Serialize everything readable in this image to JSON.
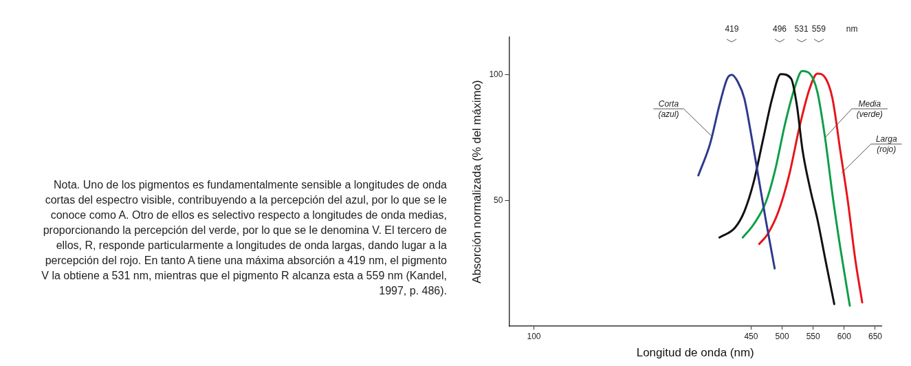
{
  "chart_data": {
    "type": "line",
    "xlabel": "Longitud de onda (nm)",
    "ylabel": "Absorción normalizada (% del máximo)",
    "x2label": "nm",
    "xlim": [
      60,
      660
    ],
    "xticks": [
      100,
      450,
      500,
      550,
      600,
      650
    ],
    "x2lim": [
      60,
      660
    ],
    "x2ticks": [
      419,
      496,
      531,
      559
    ],
    "ylim": [
      0,
      115
    ],
    "yticks": [
      50,
      100
    ],
    "grid": false,
    "legend": false,
    "marker": "none",
    "line_style": "solid",
    "series": [
      {
        "color": "#2e3a8c",
        "x": [
          365,
          384,
          399,
          411.5,
          419,
          429,
          439,
          449,
          461.5,
          474,
          488
        ],
        "values": [
          60,
          72.7,
          88,
          98.5,
          100,
          97,
          90.7,
          77.8,
          59.8,
          41.8,
          23
        ]
      },
      {
        "color": "#111111",
        "x": [
          399,
          424,
          439,
          454,
          469,
          484,
          497.8,
          514.5,
          523.7,
          532.9,
          545.2,
          557.5,
          569.8,
          584
        ],
        "values": [
          35.3,
          39.2,
          45.6,
          57.2,
          74,
          90.7,
          100.3,
          98.5,
          88,
          70,
          54.6,
          41.8,
          26.3,
          8.8
        ]
      },
      {
        "color": "#0e9e48",
        "x": [
          436.5,
          454,
          474,
          489,
          504.6,
          519.9,
          532.2,
          544.4,
          556.7,
          569,
          581.3,
          593.6,
          609
        ],
        "values": [
          35.3,
          40.5,
          49.5,
          62.4,
          80.4,
          94.6,
          101.5,
          100.5,
          93.3,
          75.3,
          52,
          31.4,
          8.2
        ]
      },
      {
        "color": "#e8141b",
        "x": [
          463,
          476.5,
          494,
          511,
          529,
          544.4,
          556.7,
          569,
          581,
          593.6,
          606,
          618,
          629
        ],
        "values": [
          32.7,
          36.6,
          45.6,
          59.8,
          80.4,
          94.6,
          100.5,
          99,
          90.7,
          70,
          49.5,
          26.3,
          9.5
        ]
      }
    ],
    "annotations": [
      "Nota. Uno de los pigmentos es fundamentalmente sensible a longitudes de onda cortas del espectro visible, contribuyendo a la percepción del azul, por lo que se le conoce como A. Otro de ellos es selectivo respecto a longitudes de onda medias, proporcionando la percepción del verde, por lo que se le denomina V. El tercero de ellos, R, responde particularmente a longitudes de onda largas, dando lugar a la percepción del rojo.  En tanto A tiene una máxima absorción a 419 nm, el pigmento V la obtiene a 531 nm, mientras que el pigmento R alcanza esta a 559 nm (Kandel, 1997, p. 486).",
      {
        "text": "Corta\n(azul)",
        "x": 389,
        "y": 75
      },
      {
        "text": "Media\n(verde)",
        "x": 569,
        "y": 75
      },
      {
        "text": "Larga\n(rojo)",
        "x": 596,
        "y": 61
      }
    ]
  }
}
